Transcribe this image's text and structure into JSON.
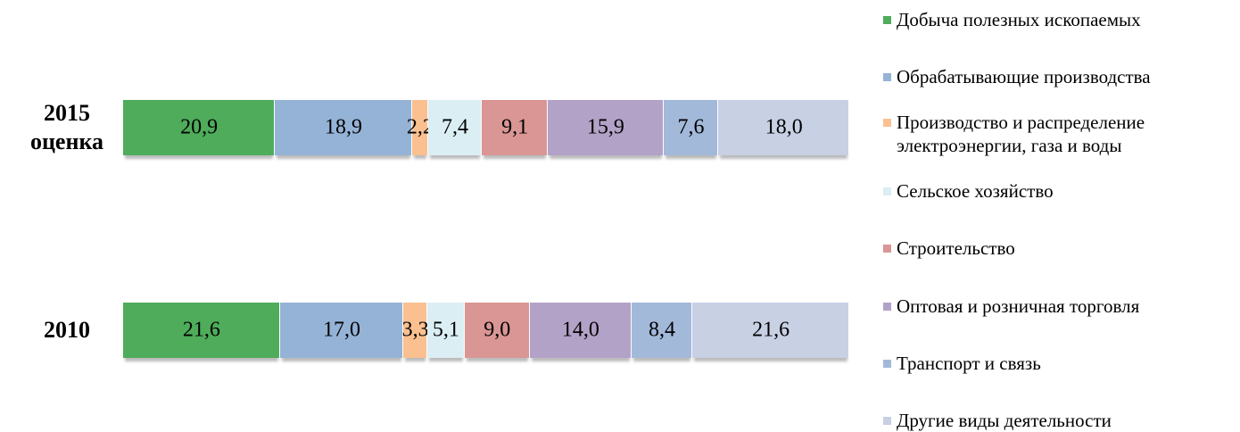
{
  "chart_data": {
    "type": "stacked-bar-horizontal",
    "categories": [
      "2015 оценка",
      "2010"
    ],
    "xlim": [
      0,
      100
    ],
    "series": [
      {
        "name": "Добыча полезных ископаемых",
        "color": "#4eac5b",
        "values": [
          20.9,
          21.6
        ],
        "value_labels": [
          "20,9",
          "21,6"
        ]
      },
      {
        "name": "Обрабатывающие производства",
        "color": "#95b3d7",
        "values": [
          18.9,
          17.0
        ],
        "value_labels": [
          "18,9",
          "17,0"
        ]
      },
      {
        "name": "Производство и распределение электроэнергии, газа и воды",
        "color": "#fac090",
        "values": [
          2.2,
          3.3
        ],
        "value_labels": [
          "2,2",
          "3,3"
        ]
      },
      {
        "name": "Сельское хозяйство",
        "color": "#dbeef4",
        "values": [
          7.4,
          5.1
        ],
        "value_labels": [
          "7,4",
          "5,1"
        ]
      },
      {
        "name": "Строительство",
        "color": "#d99694",
        "values": [
          9.1,
          9.0
        ],
        "value_labels": [
          "9,1",
          "9,0"
        ]
      },
      {
        "name": "Оптовая и розничная торговля",
        "color": "#b3a2c7",
        "values": [
          15.9,
          14.0
        ],
        "value_labels": [
          "15,9",
          "14,0"
        ]
      },
      {
        "name": "Транспорт и связь",
        "color": "#a3b9da",
        "values": [
          7.6,
          8.4
        ],
        "value_labels": [
          "7,6",
          "8,4"
        ]
      },
      {
        "name": "Другие виды деятельности",
        "color": "#c8d0e4",
        "values": [
          18.0,
          21.6
        ],
        "value_labels": [
          "18,0",
          "21,6"
        ]
      }
    ],
    "legend": "right"
  }
}
